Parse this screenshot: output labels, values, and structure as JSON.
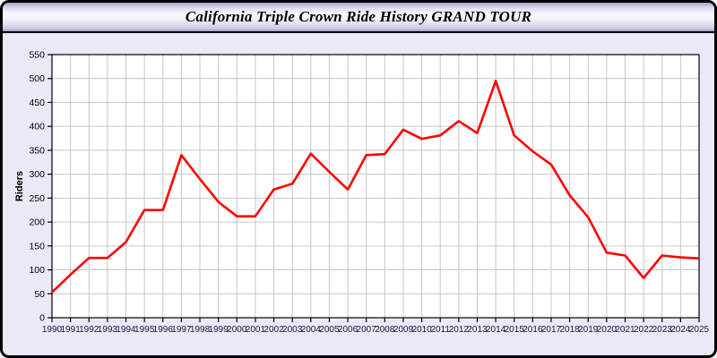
{
  "header": {
    "title": "California Triple Crown Ride History GRAND TOUR"
  },
  "chart_data": {
    "type": "line",
    "title": "California Triple Crown Ride History GRAND TOUR",
    "xlabel": "",
    "ylabel": "Riders",
    "x": [
      1990,
      1991,
      1992,
      1993,
      1994,
      1995,
      1996,
      1997,
      1998,
      1999,
      2000,
      2001,
      2002,
      2003,
      2004,
      2005,
      2006,
      2007,
      2008,
      2009,
      2010,
      2011,
      2012,
      2013,
      2014,
      2015,
      2016,
      2017,
      2018,
      2019,
      2020,
      2021,
      2022,
      2023,
      2024,
      2025
    ],
    "series": [
      {
        "name": "Riders",
        "values": [
          53,
          90,
          125,
          125,
          158,
          225,
          225,
          340,
          290,
          242,
          212,
          212,
          268,
          280,
          343,
          305,
          268,
          340,
          342,
          393,
          374,
          381,
          411,
          386,
          495,
          381,
          348,
          320,
          256,
          210,
          136,
          130,
          83,
          130,
          126,
          124
        ]
      }
    ],
    "ylim": [
      0,
      550
    ],
    "ytick_step": 50,
    "yticks": [
      0,
      50,
      100,
      150,
      200,
      250,
      300,
      350,
      400,
      450,
      500,
      550
    ],
    "grid": true,
    "legend": "none",
    "line_color": "#ff0000"
  },
  "colors": {
    "page_background": "#e9e9f8",
    "plot_background": "#ffffff",
    "grid_line": "#c6c6c6",
    "axis_frame": "#000000",
    "tick_label": "#16163c",
    "line": "#ff0000"
  }
}
